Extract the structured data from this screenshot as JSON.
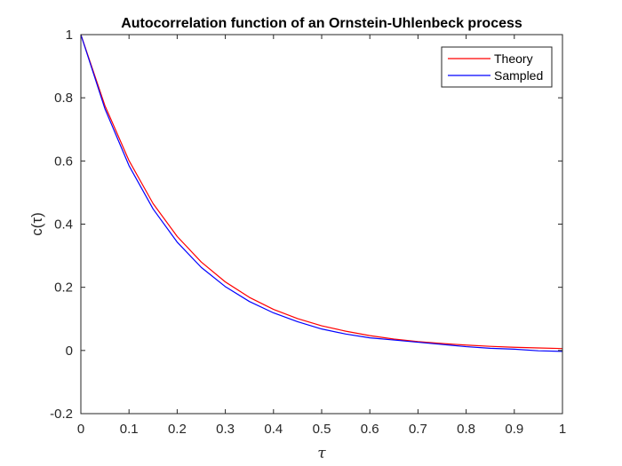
{
  "chart_data": {
    "type": "line",
    "title": "Autocorrelation function of an Ornstein-Uhlenbeck process",
    "xlabel": "τ",
    "ylabel": "c(τ)",
    "xlim": [
      0,
      1
    ],
    "ylim": [
      -0.2,
      1
    ],
    "xticks": [
      0,
      0.1,
      0.2,
      0.3,
      0.4,
      0.5,
      0.6,
      0.7,
      0.8,
      0.9,
      1
    ],
    "xtick_labels": [
      "0",
      "0.1",
      "0.2",
      "0.3",
      "0.4",
      "0.5",
      "0.6",
      "0.7",
      "0.8",
      "0.9",
      "1"
    ],
    "yticks": [
      -0.2,
      0,
      0.2,
      0.4,
      0.6,
      0.8,
      1
    ],
    "ytick_labels": [
      "-0.2",
      "0",
      "0.2",
      "0.4",
      "0.6",
      "0.8",
      "1"
    ],
    "grid": false,
    "legend_position": "top-right",
    "x": [
      0,
      0.05,
      0.1,
      0.15,
      0.2,
      0.25,
      0.3,
      0.35,
      0.4,
      0.45,
      0.5,
      0.55,
      0.6,
      0.65,
      0.7,
      0.75,
      0.8,
      0.85,
      0.9,
      0.95,
      1.0
    ],
    "series": [
      {
        "name": "Theory",
        "color": "#ff0000",
        "values": [
          1.0,
          0.775,
          0.601,
          0.465,
          0.361,
          0.28,
          0.217,
          0.168,
          0.13,
          0.101,
          0.078,
          0.061,
          0.047,
          0.036,
          0.028,
          0.022,
          0.017,
          0.013,
          0.01,
          0.008,
          0.006
        ]
      },
      {
        "name": "Sampled",
        "color": "#0000ff",
        "values": [
          1.0,
          0.765,
          0.585,
          0.448,
          0.343,
          0.263,
          0.202,
          0.155,
          0.119,
          0.091,
          0.068,
          0.052,
          0.04,
          0.033,
          0.026,
          0.019,
          0.012,
          0.007,
          0.004,
          -0.001,
          -0.003
        ]
      }
    ]
  }
}
